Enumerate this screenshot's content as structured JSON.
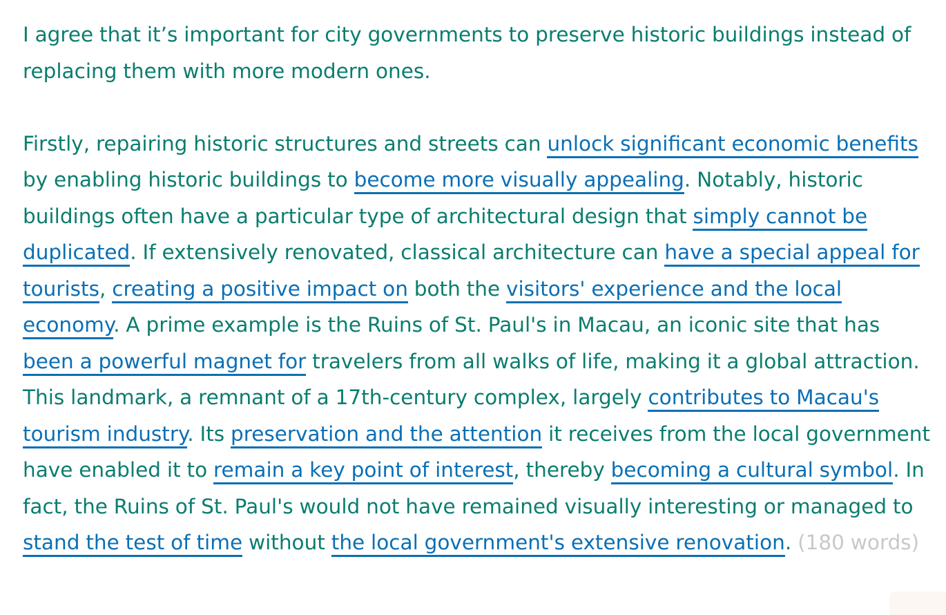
{
  "intro": "I agree that it’s important for city governments to preserve historic buildings instead of replacing them with more modern ones.",
  "body": [
    {
      "t": "Firstly, repairing historic structures and streets can "
    },
    {
      "t": "unlock significant economic benefits",
      "hl": true
    },
    {
      "t": " by enabling historic buildings to "
    },
    {
      "t": "become more visually appealing",
      "hl": true
    },
    {
      "t": ". Notably, historic buildings often have a particular type of architectural design that "
    },
    {
      "t": "simply cannot be duplicated",
      "hl": true
    },
    {
      "t": ". If extensively renovated, classical architecture can "
    },
    {
      "t": "have a special appeal for tourists",
      "hl": true
    },
    {
      "t": ", "
    },
    {
      "t": "creating a positive impact on",
      "hl": true
    },
    {
      "t": " both the "
    },
    {
      "t": "visitors' experience and the local economy",
      "hl": true
    },
    {
      "t": ". A prime example is the Ruins of St. Paul's in Macau, an iconic site that has "
    },
    {
      "t": "been a powerful magnet for",
      "hl": true
    },
    {
      "t": " travelers from all walks of life, making it a global attraction. This landmark, a remnant of a 17th-century complex, largely "
    },
    {
      "t": "contributes to Macau's tourism industry",
      "hl": true
    },
    {
      "t": ". Its "
    },
    {
      "t": "preservation and the attention",
      "hl": true
    },
    {
      "t": " it receives from the local government have enabled it to "
    },
    {
      "t": "remain a key point of interest",
      "hl": true
    },
    {
      "t": ", thereby "
    },
    {
      "t": "becoming a cultural symbol",
      "hl": true
    },
    {
      "t": ". In fact, the Ruins of St. Paul's would not have remained visually interesting or managed to "
    },
    {
      "t": "stand the test of time",
      "hl": true
    },
    {
      "t": " without "
    },
    {
      "t": "the local government's extensive renovation",
      "hl": true
    },
    {
      "t": ". "
    }
  ],
  "word_count": "(180 words)",
  "colors": {
    "text": "#0a7d6f",
    "highlight": "#0a6fb5",
    "count": "#c8c8c8"
  }
}
